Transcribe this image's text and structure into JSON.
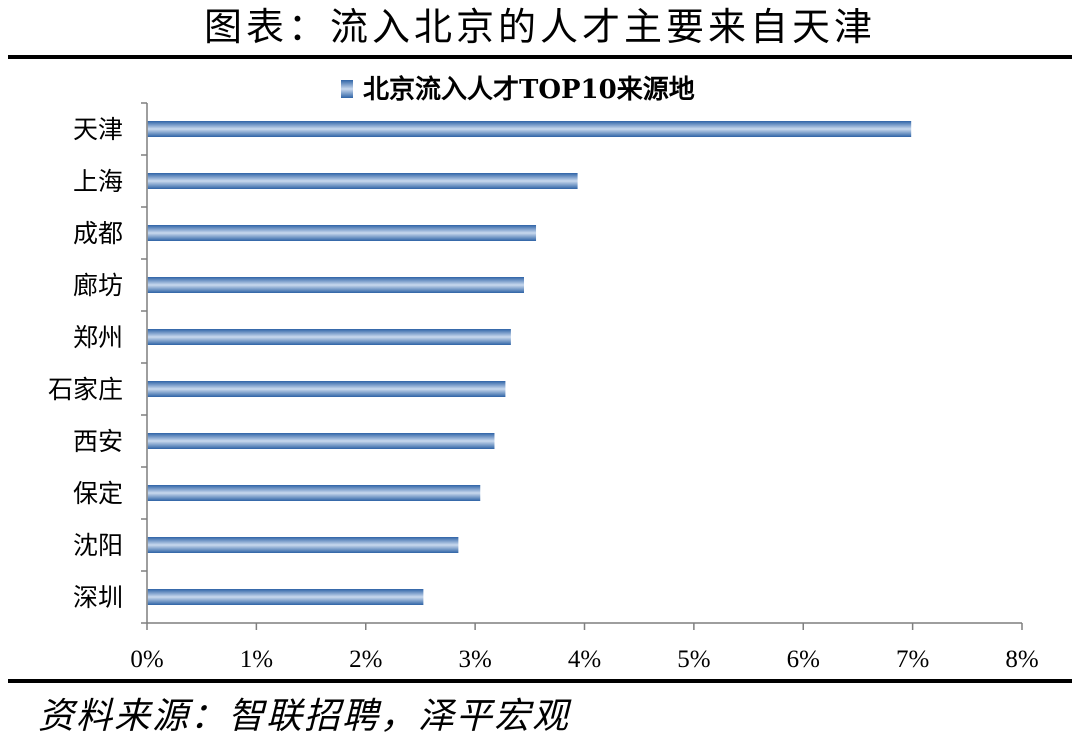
{
  "figure_title": "图表：流入北京的人才主要来自天津",
  "source_note": "资料来源：智联招聘，泽平宏观",
  "colors": {
    "bar_dark": "#2e63a6",
    "bar_light": "#c9d9ee",
    "axis": "#7f7f7f"
  },
  "chart_data": {
    "type": "bar",
    "orientation": "horizontal",
    "categories": [
      "天津",
      "上海",
      "成都",
      "廊坊",
      "郑州",
      "石家庄",
      "西安",
      "保定",
      "沈阳",
      "深圳"
    ],
    "series": [
      {
        "name": "北京流入人才TOP10来源地",
        "values": [
          6.98,
          3.93,
          3.55,
          3.44,
          3.32,
          3.27,
          3.17,
          3.04,
          2.84,
          2.52
        ]
      }
    ],
    "xlim": [
      0,
      8
    ],
    "xticks": [
      "0%",
      "1%",
      "2%",
      "3%",
      "4%",
      "5%",
      "6%",
      "7%",
      "8%"
    ],
    "value_unit": "%",
    "legend_position": "top-center",
    "grid": false
  }
}
